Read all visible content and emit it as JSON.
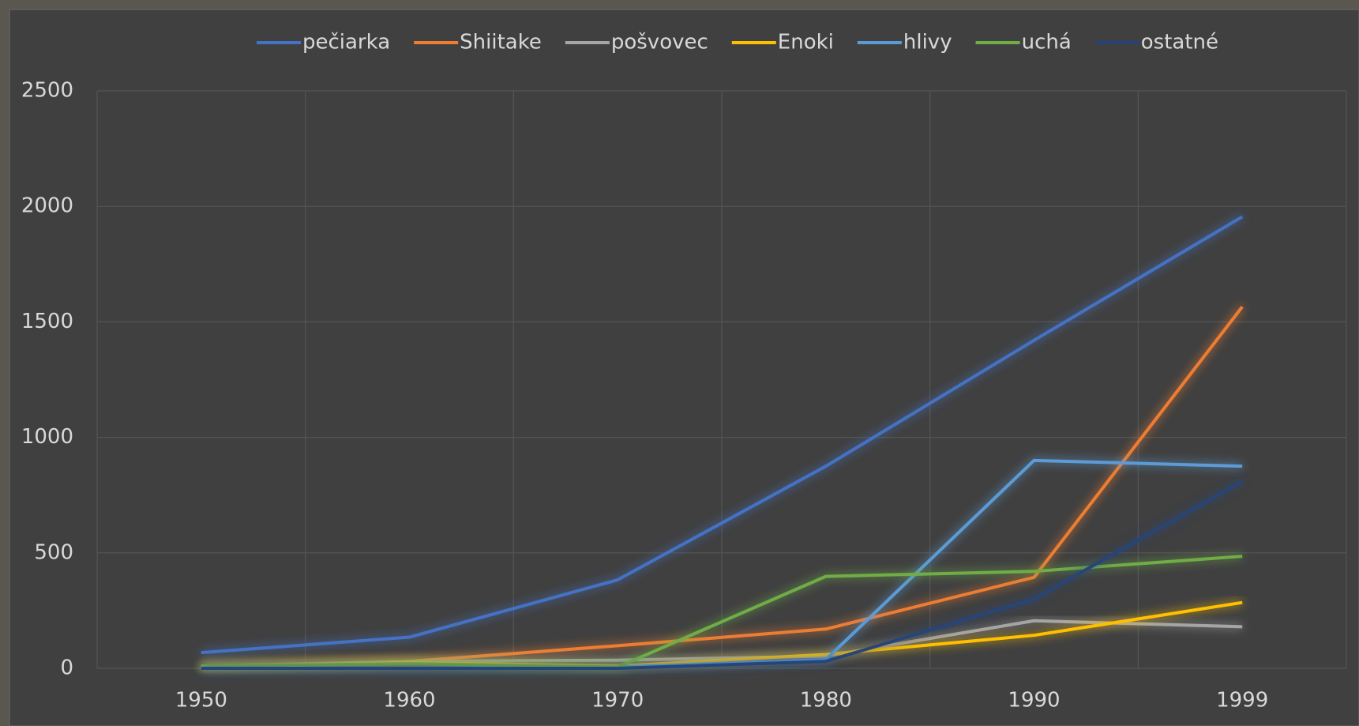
{
  "chart_data": {
    "type": "line",
    "categories": [
      "1950",
      "1960",
      "1970",
      "1980",
      "1990",
      "1999"
    ],
    "series": [
      {
        "name": "pečiarka",
        "color": "#4472c4",
        "values": [
          68,
          135,
          383,
          875,
          1420,
          1955
        ]
      },
      {
        "name": "Shiitake",
        "color": "#ed7d31",
        "values": [
          10,
          30,
          98,
          170,
          394,
          1565
        ]
      },
      {
        "name": "pošvovec",
        "color": "#a5a5a5",
        "values": [
          5,
          30,
          35,
          53,
          206,
          180
        ]
      },
      {
        "name": "Enoki",
        "color": "#ffc000",
        "values": [
          5,
          25,
          10,
          60,
          143,
          285
        ]
      },
      {
        "name": "hlivy",
        "color": "#5b9bd5",
        "values": [
          0,
          0,
          5,
          38,
          900,
          875
        ]
      },
      {
        "name": "uchá",
        "color": "#70ad47",
        "values": [
          10,
          20,
          5,
          398,
          420,
          485
        ]
      },
      {
        "name": "ostatné",
        "color": "#264478",
        "values": [
          0,
          0,
          0,
          30,
          300,
          810
        ]
      }
    ],
    "ylim": [
      0,
      2500
    ],
    "yticks": [
      0,
      500,
      1000,
      1500,
      2000,
      2500
    ],
    "grid": true,
    "legend": "top"
  }
}
